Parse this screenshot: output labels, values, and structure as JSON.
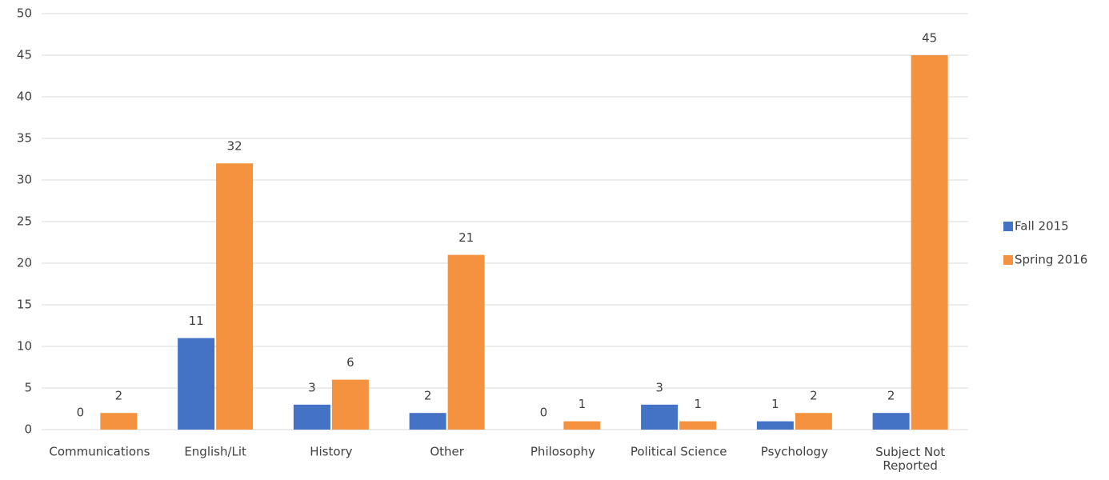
{
  "chart_data": {
    "type": "bar",
    "categories": [
      "Communications",
      "English/Lit",
      "History",
      "Other",
      "Philosophy",
      "Political Science",
      "Psychology",
      "Subject Not Reported"
    ],
    "series": [
      {
        "name": "Fall 2015",
        "color": "#4472c4",
        "values": [
          0,
          11,
          3,
          2,
          0,
          3,
          1,
          2
        ]
      },
      {
        "name": "Spring 2016",
        "color": "#f4923f",
        "values": [
          2,
          32,
          6,
          21,
          1,
          1,
          2,
          45
        ]
      }
    ],
    "ylim": [
      0,
      50
    ],
    "yticks": [
      0,
      5,
      10,
      15,
      20,
      25,
      30,
      35,
      40,
      45,
      50
    ],
    "grid": true,
    "legend": "right"
  }
}
